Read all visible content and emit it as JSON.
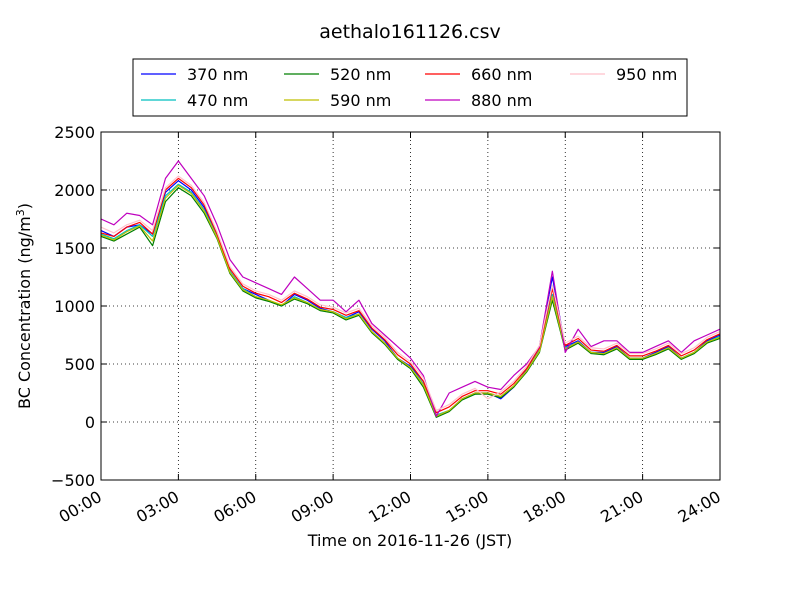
{
  "chart_data": {
    "type": "line",
    "title": "aethalo161126.csv",
    "xlabel": "Time on 2016-11-26 (JST)",
    "ylabel": "BC Concentration (ng/m³)",
    "ylabel_main": "BC Concentration (ng/m",
    "ylabel_sup": "3",
    "ylabel_close": ")",
    "xlim": [
      0,
      24
    ],
    "ylim": [
      -500,
      2500
    ],
    "x_ticks": [
      0,
      3,
      6,
      9,
      12,
      15,
      18,
      21,
      24
    ],
    "x_tick_labels": [
      "00:00",
      "03:00",
      "06:00",
      "09:00",
      "12:00",
      "15:00",
      "18:00",
      "21:00",
      "24:00"
    ],
    "y_ticks": [
      -500,
      0,
      500,
      1000,
      1500,
      2000,
      2500
    ],
    "y_tick_labels": [
      "−500",
      "0",
      "500",
      "1000",
      "1500",
      "2000",
      "2500"
    ],
    "grid": true,
    "legend_position": "top-center",
    "x_unit": "hours since 00:00 JST",
    "x": [
      0.0,
      0.5,
      1.0,
      1.5,
      2.0,
      2.5,
      3.0,
      3.5,
      4.0,
      4.5,
      5.0,
      5.5,
      6.0,
      6.5,
      7.0,
      7.5,
      8.0,
      8.5,
      9.0,
      9.5,
      10.0,
      10.5,
      11.0,
      11.5,
      12.0,
      12.5,
      13.0,
      13.5,
      14.0,
      14.5,
      15.0,
      15.5,
      16.0,
      16.5,
      17.0,
      17.5,
      18.0,
      18.5,
      19.0,
      19.5,
      20.0,
      20.5,
      21.0,
      21.5,
      22.0,
      22.5,
      23.0,
      23.5,
      24.0
    ],
    "series": [
      {
        "name": "370 nm",
        "color": "#0000ff",
        "values": [
          1650,
          1600,
          1680,
          1700,
          1620,
          1980,
          2080,
          2000,
          1850,
          1600,
          1300,
          1150,
          1100,
          1050,
          1000,
          1100,
          1050,
          980,
          950,
          900,
          950,
          800,
          700,
          550,
          480,
          350,
          50,
          100,
          200,
          250,
          250,
          200,
          300,
          450,
          650,
          1250,
          650,
          700,
          600,
          600,
          650,
          550,
          550,
          600,
          650,
          550,
          600,
          700,
          750
        ]
      },
      {
        "name": "470 nm",
        "color": "#00bfbf",
        "values": [
          1620,
          1580,
          1650,
          1700,
          1600,
          1950,
          2050,
          1980,
          1830,
          1600,
          1300,
          1150,
          1080,
          1050,
          1000,
          1080,
          1030,
          970,
          950,
          900,
          930,
          780,
          680,
          550,
          470,
          330,
          60,
          100,
          190,
          240,
          250,
          220,
          310,
          440,
          620,
          1100,
          640,
          690,
          600,
          590,
          640,
          550,
          540,
          590,
          640,
          550,
          600,
          690,
          740
        ]
      },
      {
        "name": "520 nm",
        "color": "#007f00",
        "values": [
          1600,
          1560,
          1620,
          1680,
          1520,
          1900,
          2020,
          1950,
          1800,
          1580,
          1280,
          1130,
          1070,
          1040,
          1000,
          1060,
          1020,
          960,
          940,
          880,
          920,
          770,
          670,
          540,
          460,
          300,
          40,
          90,
          190,
          240,
          240,
          210,
          300,
          430,
          600,
          1050,
          620,
          680,
          590,
          580,
          630,
          540,
          540,
          580,
          630,
          540,
          590,
          680,
          720
        ]
      },
      {
        "name": "590 nm",
        "color": "#bfbf00",
        "values": [
          1610,
          1570,
          1640,
          1690,
          1560,
          1930,
          2040,
          1970,
          1820,
          1590,
          1290,
          1140,
          1080,
          1050,
          1010,
          1070,
          1030,
          970,
          950,
          890,
          930,
          780,
          680,
          550,
          470,
          320,
          50,
          100,
          200,
          250,
          250,
          220,
          310,
          440,
          610,
          1080,
          630,
          690,
          600,
          590,
          640,
          550,
          550,
          590,
          640,
          550,
          600,
          690,
          730
        ]
      },
      {
        "name": "660 nm",
        "color": "#ff0000",
        "values": [
          1630,
          1600,
          1680,
          1720,
          1620,
          2000,
          2100,
          2020,
          1870,
          1620,
          1320,
          1170,
          1110,
          1080,
          1030,
          1110,
          1060,
          990,
          970,
          920,
          960,
          810,
          710,
          580,
          500,
          350,
          80,
          130,
          220,
          270,
          270,
          240,
          330,
          460,
          640,
          1150,
          660,
          720,
          620,
          610,
          660,
          570,
          570,
          610,
          660,
          570,
          620,
          710,
          760
        ]
      },
      {
        "name": "880 nm",
        "color": "#bf00bf",
        "values": [
          1750,
          1700,
          1800,
          1780,
          1700,
          2100,
          2250,
          2100,
          1950,
          1700,
          1400,
          1250,
          1200,
          1150,
          1100,
          1250,
          1150,
          1050,
          1050,
          950,
          1050,
          850,
          750,
          650,
          550,
          400,
          50,
          250,
          300,
          350,
          300,
          280,
          400,
          500,
          650,
          1300,
          600,
          800,
          650,
          700,
          700,
          600,
          600,
          650,
          700,
          600,
          700,
          750,
          800
        ]
      },
      {
        "name": "950 nm",
        "color": "#ffc0cb",
        "values": [
          1680,
          1630,
          1700,
          1740,
          1650,
          2020,
          2120,
          2040,
          1890,
          1640,
          1340,
          1190,
          1130,
          1100,
          1050,
          1130,
          1080,
          1010,
          990,
          940,
          980,
          830,
          730,
          600,
          520,
          380,
          100,
          150,
          240,
          290,
          200,
          260,
          350,
          480,
          660,
          1180,
          680,
          740,
          640,
          630,
          680,
          590,
          590,
          630,
          680,
          590,
          640,
          730,
          780
        ]
      }
    ]
  }
}
